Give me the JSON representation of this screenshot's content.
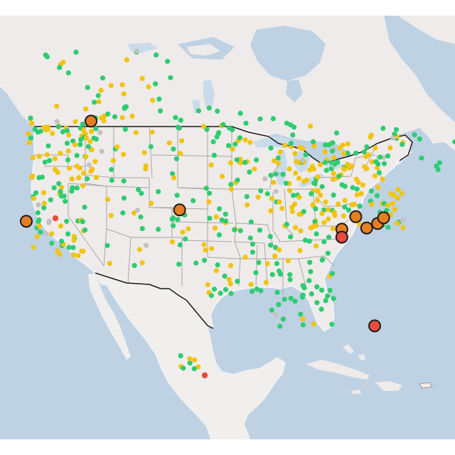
{
  "colors": {
    "water": "#bed2e4",
    "land": "#efebea",
    "land_alt": "#f1efee",
    "lake": "#c9dbea",
    "state_border": "#a8a6a6",
    "country_border": "#1a1a1a",
    "status_good": "#2ecc71",
    "status_moderate": "#f1c40f",
    "status_sensitive": "#e67e22",
    "status_unhealthy": "#e74c3c",
    "status_nodata": "#c2c2c2"
  },
  "markers": {
    "large": [
      {
        "status": "sensitive",
        "lat": 48.1,
        "lon": -114.2
      },
      {
        "status": "sensitive",
        "lat": 40.3,
        "lon": -105.3
      },
      {
        "status": "sensitive",
        "lat": 39.3,
        "lon": -120.7
      },
      {
        "status": "sensitive",
        "lat": 39.7,
        "lon": -87.6
      },
      {
        "status": "sensitive",
        "lat": 38.6,
        "lon": -89.0
      },
      {
        "status": "unhealthy",
        "lat": 37.9,
        "lon": -89.0
      },
      {
        "status": "sensitive",
        "lat": 38.7,
        "lon": -86.5
      },
      {
        "status": "sensitive",
        "lat": 39.1,
        "lon": -85.4
      },
      {
        "status": "sensitive",
        "lat": 39.6,
        "lon": -84.8
      },
      {
        "status": "unhealthy",
        "lat": 30.1,
        "lon": -85.7
      }
    ]
  }
}
